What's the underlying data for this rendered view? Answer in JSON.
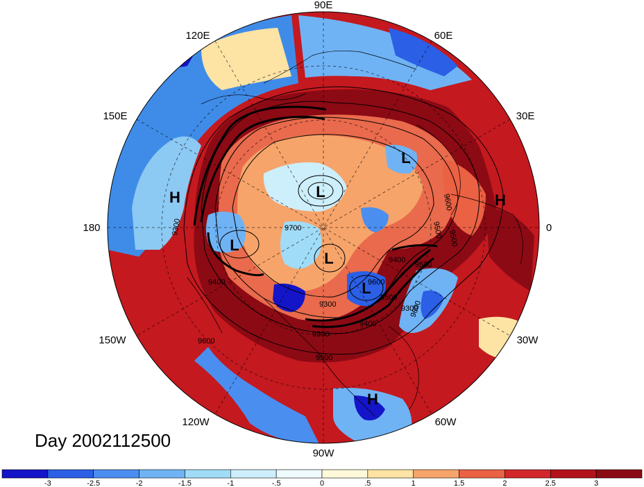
{
  "day_label": "Day 2002112500",
  "longitude_labels": {
    "n": "90E",
    "ne": "60E",
    "ene": "30E",
    "e": "0",
    "ese": "30W",
    "se": "60W",
    "s": "90W",
    "sw": "120W",
    "wsw": "150W",
    "w": "180",
    "wnw": "150E",
    "nw": "120E"
  },
  "pressure_centers": [
    {
      "label": "H",
      "name": "high-center-west-pacific"
    },
    {
      "label": "L",
      "name": "low-center-north-pacific"
    },
    {
      "label": "L",
      "name": "low-center-siberia"
    },
    {
      "label": "L",
      "name": "low-center-north-pole"
    },
    {
      "label": "L",
      "name": "low-center-hudson-bay"
    },
    {
      "label": "L",
      "name": "low-center-north-europe"
    },
    {
      "label": "H",
      "name": "high-center-africa"
    },
    {
      "label": "H",
      "name": "high-center-caribbean"
    }
  ],
  "contour_labels": [
    "9700",
    "9600",
    "9500",
    "9400",
    "9300",
    "9600",
    "9500",
    "9400",
    "9300",
    "9300",
    "9500",
    "9600",
    "9300",
    "9600",
    "9400",
    "9500",
    "9500"
  ],
  "colorbar": {
    "ticks": [
      "-3",
      "-2.5",
      "-2",
      "-1.5",
      "-1",
      "-.5",
      "0",
      ".5",
      "1",
      "1.5",
      "2",
      "2.5",
      "3"
    ],
    "colors": [
      "#1414c8",
      "#2b5fe6",
      "#4a8ef0",
      "#6fb3f5",
      "#a0dcf8",
      "#cdeefb",
      "#eefafd",
      "#fef9d9",
      "#fde3a4",
      "#f6a46a",
      "#ea6143",
      "#d3262a",
      "#b3121a",
      "#8c0a14"
    ]
  }
}
